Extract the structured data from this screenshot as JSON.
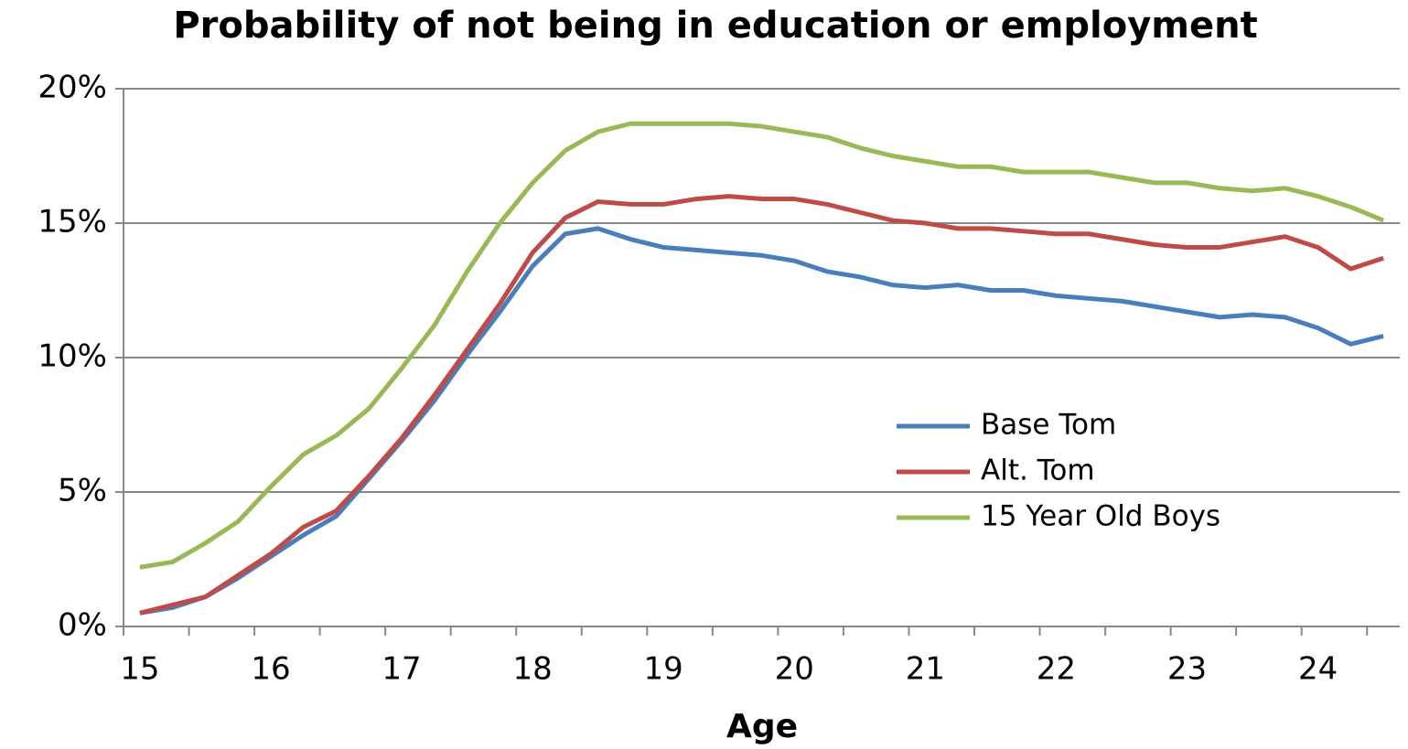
{
  "chart_data": {
    "type": "line",
    "title": "Probability of not being in education or employment",
    "x_label": "Age",
    "categories": [
      "15",
      null,
      null,
      null,
      "16",
      null,
      null,
      null,
      "17",
      null,
      null,
      null,
      "18",
      null,
      null,
      null,
      "19",
      null,
      null,
      null,
      "20",
      null,
      null,
      null,
      "21",
      null,
      null,
      null,
      "22",
      null,
      null,
      null,
      "23",
      null,
      null,
      null,
      "24",
      null,
      null
    ],
    "series": [
      {
        "name": "Base Tom",
        "color": "#4a7ebb",
        "values": [
          0.5,
          0.7,
          1.1,
          1.8,
          2.6,
          3.4,
          4.1,
          5.5,
          6.9,
          8.4,
          10.1,
          11.7,
          13.4,
          14.6,
          14.8,
          14.4,
          14.1,
          14.0,
          13.9,
          13.8,
          13.6,
          13.2,
          13.0,
          12.7,
          12.6,
          12.7,
          12.5,
          12.5,
          12.3,
          12.2,
          12.1,
          11.9,
          11.7,
          11.5,
          11.6,
          11.5,
          11.1,
          10.5,
          10.8
        ]
      },
      {
        "name": "Alt. Tom",
        "color": "#be4b48",
        "values": [
          0.5,
          0.8,
          1.1,
          1.9,
          2.7,
          3.7,
          4.3,
          5.6,
          7.0,
          8.6,
          10.3,
          12.0,
          13.9,
          15.2,
          15.8,
          15.7,
          15.7,
          15.9,
          16.0,
          15.9,
          15.9,
          15.7,
          15.4,
          15.1,
          15.0,
          14.8,
          14.8,
          14.7,
          14.6,
          14.6,
          14.4,
          14.2,
          14.1,
          14.1,
          14.3,
          14.5,
          14.1,
          13.3,
          13.7
        ]
      },
      {
        "name": "15 Year Old Boys",
        "color": "#98b954",
        "values": [
          2.2,
          2.4,
          3.1,
          3.9,
          5.2,
          6.4,
          7.1,
          8.1,
          9.6,
          11.2,
          13.2,
          15.0,
          16.5,
          17.7,
          18.4,
          18.7,
          18.7,
          18.7,
          18.7,
          18.6,
          18.4,
          18.2,
          17.8,
          17.5,
          17.3,
          17.1,
          17.1,
          16.9,
          16.9,
          16.9,
          16.7,
          16.5,
          16.5,
          16.3,
          16.2,
          16.3,
          16.0,
          15.6,
          15.1
        ]
      }
    ],
    "ylim": [
      0,
      20
    ],
    "yticks": [
      {
        "value": 0,
        "label": "0%"
      },
      {
        "value": 5,
        "label": "5%"
      },
      {
        "value": 10,
        "label": "10%"
      },
      {
        "value": 15,
        "label": "15%"
      },
      {
        "value": 20,
        "label": "20%"
      }
    ],
    "grid": true
  }
}
